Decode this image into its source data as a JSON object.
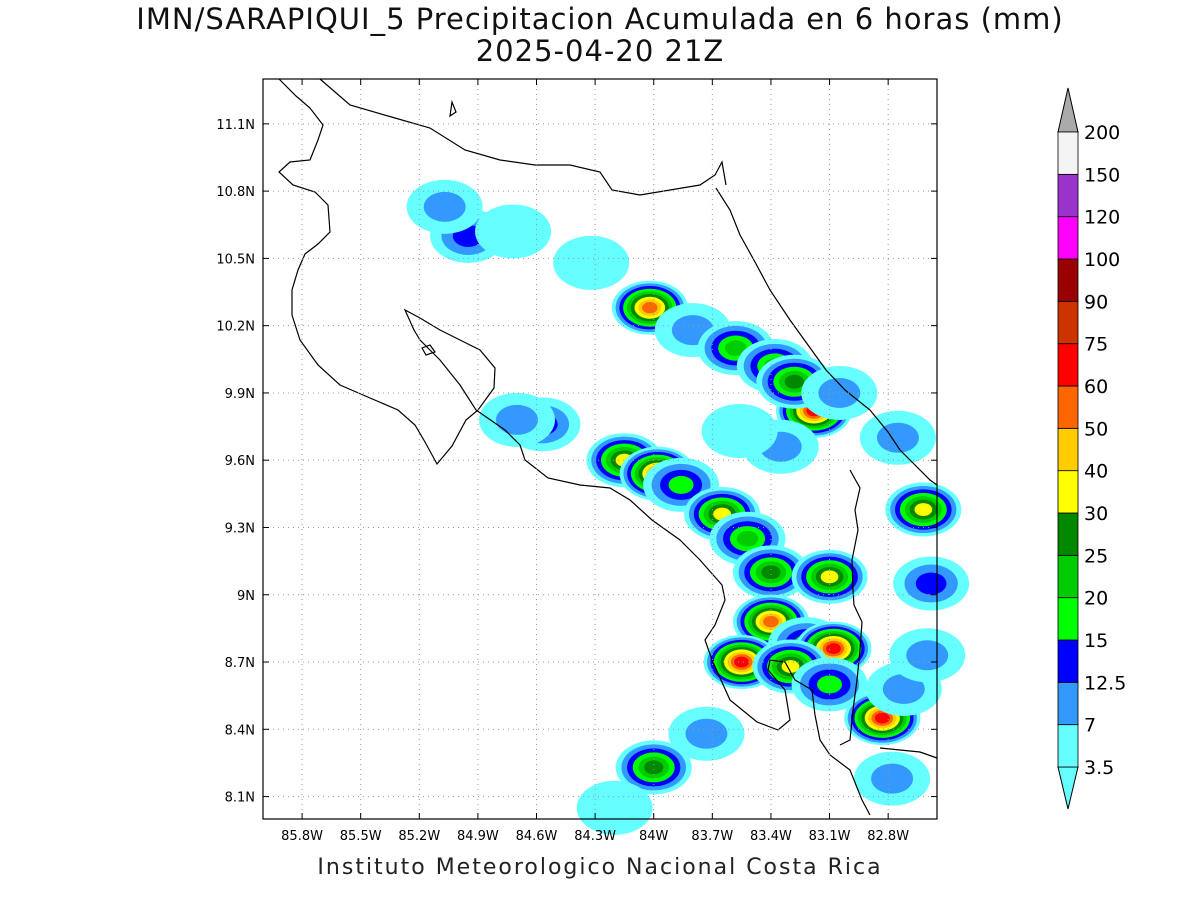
{
  "title": "IMN/SARAPIQUI_5 Precipitacion Acumulada en 6 horas (mm)",
  "subtitle": "2025-04-20 21Z",
  "credit": "Instituto Meteorologico Nacional Costa Rica",
  "map": {
    "lon_range": [
      -86.0,
      -82.55
    ],
    "lat_range": [
      8.0,
      11.3
    ],
    "x_ticks": [
      {
        "value": -85.8,
        "label": "85.8W"
      },
      {
        "value": -85.5,
        "label": "85.5W"
      },
      {
        "value": -85.2,
        "label": "85.2W"
      },
      {
        "value": -84.9,
        "label": "84.9W"
      },
      {
        "value": -84.6,
        "label": "84.6W"
      },
      {
        "value": -84.3,
        "label": "84.3W"
      },
      {
        "value": -84.0,
        "label": "84W"
      },
      {
        "value": -83.7,
        "label": "83.7W"
      },
      {
        "value": -83.4,
        "label": "83.4W"
      },
      {
        "value": -83.1,
        "label": "83.1W"
      },
      {
        "value": -82.8,
        "label": "82.8W"
      }
    ],
    "y_ticks": [
      {
        "value": 11.1,
        "label": "11.1N"
      },
      {
        "value": 10.8,
        "label": "10.8N"
      },
      {
        "value": 10.5,
        "label": "10.5N"
      },
      {
        "value": 10.2,
        "label": "10.2N"
      },
      {
        "value": 9.9,
        "label": "9.9N"
      },
      {
        "value": 9.6,
        "label": "9.6N"
      },
      {
        "value": 9.3,
        "label": "9.3N"
      },
      {
        "value": 9.0,
        "label": "9N"
      },
      {
        "value": 8.7,
        "label": "8.7N"
      },
      {
        "value": 8.4,
        "label": "8.4N"
      },
      {
        "value": 8.1,
        "label": "8.1N"
      }
    ],
    "grid": true
  },
  "legend": {
    "colors": [
      "#66ffff",
      "#3399ff",
      "#0000ff",
      "#00ff00",
      "#00cc00",
      "#008800",
      "#ffff00",
      "#ffcc00",
      "#ff6600",
      "#ff0000",
      "#cc3300",
      "#990000",
      "#ff00ff",
      "#9933cc",
      "#f4f4f4",
      "#aaaaaa"
    ],
    "labels": [
      "3.5",
      "7",
      "12.5",
      "15",
      "20",
      "25",
      "30",
      "40",
      "50",
      "60",
      "75",
      "90",
      "100",
      "120",
      "150",
      "200"
    ]
  },
  "rain_cells": [
    {
      "lon": -84.95,
      "lat": 10.6,
      "level": 2
    },
    {
      "lon": -84.72,
      "lat": 10.62,
      "level": 0
    },
    {
      "lon": -85.07,
      "lat": 10.73,
      "level": 1
    },
    {
      "lon": -84.32,
      "lat": 10.48,
      "level": 0
    },
    {
      "lon": -84.02,
      "lat": 10.28,
      "level": 8
    },
    {
      "lon": -83.8,
      "lat": 10.18,
      "level": 1
    },
    {
      "lon": -83.58,
      "lat": 10.1,
      "level": 4
    },
    {
      "lon": -83.38,
      "lat": 10.02,
      "level": 4
    },
    {
      "lon": -83.18,
      "lat": 9.82,
      "level": 9
    },
    {
      "lon": -83.28,
      "lat": 9.95,
      "level": 5
    },
    {
      "lon": -83.05,
      "lat": 9.9,
      "level": 1
    },
    {
      "lon": -84.57,
      "lat": 9.76,
      "level": 2
    },
    {
      "lon": -84.7,
      "lat": 9.78,
      "level": 1
    },
    {
      "lon": -83.35,
      "lat": 9.66,
      "level": 1
    },
    {
      "lon": -83.56,
      "lat": 9.73,
      "level": 0
    },
    {
      "lon": -84.15,
      "lat": 9.6,
      "level": 6
    },
    {
      "lon": -83.98,
      "lat": 9.54,
      "level": 8
    },
    {
      "lon": -83.86,
      "lat": 9.49,
      "level": 3
    },
    {
      "lon": -83.65,
      "lat": 9.36,
      "level": 6
    },
    {
      "lon": -83.52,
      "lat": 9.25,
      "level": 4
    },
    {
      "lon": -83.4,
      "lat": 9.1,
      "level": 5
    },
    {
      "lon": -83.1,
      "lat": 9.08,
      "level": 6
    },
    {
      "lon": -83.4,
      "lat": 8.88,
      "level": 8
    },
    {
      "lon": -83.22,
      "lat": 8.78,
      "level": 3
    },
    {
      "lon": -83.08,
      "lat": 8.76,
      "level": 9
    },
    {
      "lon": -83.55,
      "lat": 8.7,
      "level": 9
    },
    {
      "lon": -83.3,
      "lat": 8.68,
      "level": 6
    },
    {
      "lon": -83.1,
      "lat": 8.6,
      "level": 3
    },
    {
      "lon": -82.83,
      "lat": 8.45,
      "level": 9
    },
    {
      "lon": -82.72,
      "lat": 8.58,
      "level": 1
    },
    {
      "lon": -84.0,
      "lat": 8.23,
      "level": 5
    },
    {
      "lon": -82.78,
      "lat": 8.18,
      "level": 1
    },
    {
      "lon": -82.62,
      "lat": 9.38,
      "level": 6
    },
    {
      "lon": -82.58,
      "lat": 9.05,
      "level": 2
    },
    {
      "lon": -82.75,
      "lat": 9.7,
      "level": 1
    },
    {
      "lon": -83.73,
      "lat": 8.38,
      "level": 1
    },
    {
      "lon": -84.2,
      "lat": 8.05,
      "level": 0
    },
    {
      "lon": -82.6,
      "lat": 8.73,
      "level": 1
    }
  ]
}
